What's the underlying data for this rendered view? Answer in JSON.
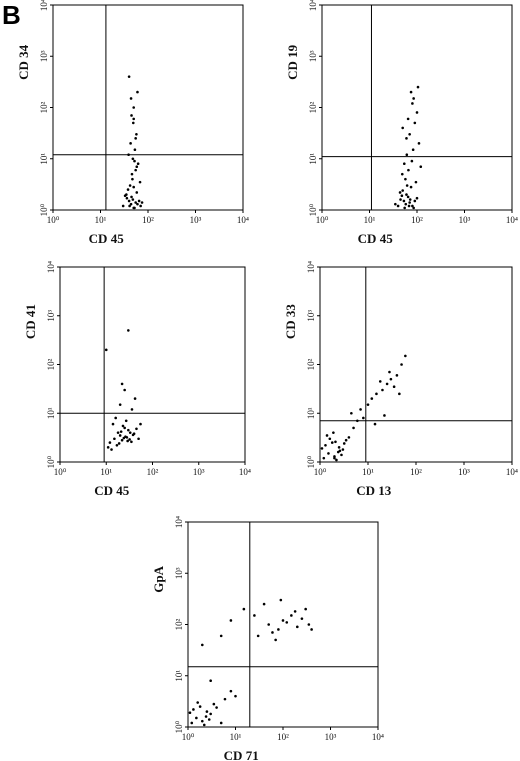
{
  "panel_label": "B",
  "chart_data": [
    {
      "type": "scatter",
      "xlabel": "CD 45",
      "ylabel": "CD 34",
      "log_scale": true,
      "color": "#000000",
      "xlim": [
        1,
        10000
      ],
      "ylim": [
        1,
        10000
      ],
      "xticks": [
        {
          "value": 1,
          "label": "10⁰"
        },
        {
          "value": 10,
          "label": "10¹"
        },
        {
          "value": 100,
          "label": "10²"
        },
        {
          "value": 1000,
          "label": "10³"
        },
        {
          "value": 10000,
          "label": "10⁴"
        }
      ],
      "yticks": [
        {
          "value": 1,
          "label": "10⁰"
        },
        {
          "value": 10,
          "label": "10¹"
        },
        {
          "value": 100,
          "label": "10²"
        },
        {
          "value": 1000,
          "label": "10³"
        },
        {
          "value": 10000,
          "label": "10⁴"
        }
      ],
      "gate": {
        "x": 13,
        "y": 12
      },
      "x": [
        30,
        40,
        50,
        35,
        60,
        45,
        55,
        38,
        70,
        42,
        48,
        52,
        33,
        65,
        58,
        44,
        36,
        75,
        50,
        41,
        47,
        55,
        62,
        39,
        53,
        46,
        68,
        43,
        57,
        49,
        50,
        45,
        60,
        40,
        55,
        48,
        52,
        58,
        44,
        50
      ],
      "y": [
        1.2,
        1.5,
        1.1,
        2,
        1.3,
        1.8,
        1.4,
        2.5,
        1.2,
        3,
        1.6,
        1.1,
        1.9,
        1.5,
        2.2,
        1.3,
        1.7,
        1.4,
        2.8,
        1.2,
        4,
        6,
        8,
        12,
        15,
        5,
        3.5,
        20,
        30,
        50,
        100,
        70,
        200,
        400,
        25,
        10,
        9,
        7,
        150,
        60
      ]
    },
    {
      "type": "scatter",
      "xlabel": "CD 45",
      "ylabel": "CD 19",
      "log_scale": true,
      "color": "#000000",
      "xlim": [
        1,
        10000
      ],
      "ylim": [
        1,
        10000
      ],
      "xticks": [
        {
          "value": 1,
          "label": "10⁰"
        },
        {
          "value": 10,
          "label": "10¹"
        },
        {
          "value": 100,
          "label": "10²"
        },
        {
          "value": 1000,
          "label": "10³"
        },
        {
          "value": 10000,
          "label": "10⁴"
        }
      ],
      "yticks": [
        {
          "value": 1,
          "label": "10⁰"
        },
        {
          "value": 10,
          "label": "10¹"
        },
        {
          "value": 100,
          "label": "10²"
        },
        {
          "value": 1000,
          "label": "10³"
        },
        {
          "value": 10000,
          "label": "10⁴"
        }
      ],
      "gate": {
        "x": 11,
        "y": 11
      },
      "x": [
        35,
        45,
        55,
        60,
        70,
        80,
        50,
        65,
        90,
        40,
        75,
        58,
        48,
        85,
        62,
        53,
        100,
        44,
        68,
        72,
        57,
        66,
        49,
        78,
        95,
        61,
        54,
        83,
        110,
        120,
        70,
        90,
        60,
        100,
        80,
        75,
        50,
        85,
        65,
        105
      ],
      "y": [
        1.3,
        1.6,
        1.1,
        2,
        1.4,
        1.2,
        2.4,
        1.8,
        1.5,
        1.2,
        2.8,
        1.3,
        1.9,
        1.1,
        3,
        1.5,
        1.7,
        2.2,
        1.2,
        1.6,
        4,
        6,
        5,
        9,
        3.5,
        12,
        8,
        15,
        20,
        7,
        30,
        50,
        25,
        80,
        120,
        200,
        40,
        150,
        60,
        250
      ]
    },
    {
      "type": "scatter",
      "xlabel": "CD 45",
      "ylabel": "CD 41",
      "log_scale": true,
      "color": "#000000",
      "xlim": [
        1,
        10000
      ],
      "ylim": [
        1,
        10000
      ],
      "xticks": [
        {
          "value": 1,
          "label": "10⁰"
        },
        {
          "value": 10,
          "label": "10¹"
        },
        {
          "value": 100,
          "label": "10²"
        },
        {
          "value": 1000,
          "label": "10³"
        },
        {
          "value": 10000,
          "label": "10⁴"
        }
      ],
      "yticks": [
        {
          "value": 1,
          "label": "10⁰"
        },
        {
          "value": 10,
          "label": "10¹"
        },
        {
          "value": 100,
          "label": "10²"
        },
        {
          "value": 1000,
          "label": "10³"
        },
        {
          "value": 10000,
          "label": "10⁴"
        }
      ],
      "gate": {
        "x": 9,
        "y": 10
      },
      "x": [
        12,
        15,
        18,
        20,
        22,
        25,
        28,
        30,
        35,
        40,
        14,
        17,
        21,
        24,
        27,
        32,
        38,
        45,
        50,
        19,
        23,
        26,
        29,
        16,
        33,
        11,
        13,
        36,
        42,
        55,
        30,
        10,
        25,
        22,
        20
      ],
      "y": [
        2.5,
        3,
        4,
        3.5,
        2.8,
        5,
        3.2,
        4.5,
        2.6,
        3.8,
        6,
        2.2,
        4.2,
        3.1,
        7,
        2.9,
        3.6,
        4.8,
        3,
        2.4,
        5.5,
        3.3,
        2.7,
        8,
        4,
        2,
        1.8,
        12,
        20,
        6,
        500,
        200,
        30,
        40,
        15
      ]
    },
    {
      "type": "scatter",
      "xlabel": "CD 13",
      "ylabel": "CD 33",
      "log_scale": true,
      "color": "#000000",
      "xlim": [
        1,
        10000
      ],
      "ylim": [
        1,
        10000
      ],
      "xticks": [
        {
          "value": 1,
          "label": "10⁰"
        },
        {
          "value": 10,
          "label": "10¹"
        },
        {
          "value": 100,
          "label": "10²"
        },
        {
          "value": 1000,
          "label": "10³"
        },
        {
          "value": 10000,
          "label": "10⁴"
        }
      ],
      "yticks": [
        {
          "value": 1,
          "label": "10⁰"
        },
        {
          "value": 10,
          "label": "10¹"
        },
        {
          "value": 100,
          "label": "10²"
        },
        {
          "value": 1000,
          "label": "10³"
        },
        {
          "value": 10000,
          "label": "10⁴"
        }
      ],
      "gate": {
        "x": 9,
        "y": 7
      },
      "x": [
        1.2,
        1.5,
        2,
        2.5,
        3,
        1.8,
        2.2,
        1.3,
        2.8,
        3.5,
        1.6,
        2.4,
        1.1,
        3.2,
        2,
        1.4,
        2.6,
        4,
        1.9,
        2.1,
        5,
        6,
        8,
        4.5,
        7,
        10,
        12,
        15,
        20,
        25,
        30,
        18,
        40,
        50,
        35,
        22,
        60,
        14,
        28,
        45
      ],
      "y": [
        1.2,
        1.5,
        1.3,
        2,
        1.8,
        2.5,
        1.1,
        2.2,
        1.4,
        2.8,
        3,
        1.6,
        1.9,
        2.4,
        1.2,
        3.5,
        1.7,
        3.2,
        4,
        2.6,
        5,
        7,
        8,
        10,
        12,
        15,
        20,
        25,
        30,
        40,
        50,
        45,
        60,
        100,
        35,
        9,
        150,
        6,
        70,
        25
      ]
    },
    {
      "type": "scatter",
      "xlabel": "CD 71",
      "ylabel": "GpA",
      "log_scale": true,
      "color": "#000000",
      "xlim": [
        1,
        10000
      ],
      "ylim": [
        1,
        10000
      ],
      "xticks": [
        {
          "value": 1,
          "label": "10⁰"
        },
        {
          "value": 10,
          "label": "10¹"
        },
        {
          "value": 100,
          "label": "10²"
        },
        {
          "value": 1000,
          "label": "10³"
        },
        {
          "value": 10000,
          "label": "10⁴"
        }
      ],
      "yticks": [
        {
          "value": 1,
          "label": "10⁰"
        },
        {
          "value": 10,
          "label": "10¹"
        },
        {
          "value": 100,
          "label": "10²"
        },
        {
          "value": 1000,
          "label": "10³"
        },
        {
          "value": 10000,
          "label": "10⁴"
        }
      ],
      "gate": {
        "x": 20,
        "y": 15
      },
      "x": [
        1.2,
        1.5,
        2,
        2.5,
        3,
        1.8,
        2.2,
        1.3,
        2.8,
        3.5,
        1.6,
        2.4,
        1.1,
        4,
        5,
        6,
        8,
        3,
        10,
        2,
        30,
        50,
        80,
        100,
        150,
        200,
        300,
        60,
        120,
        250,
        40,
        70,
        180,
        90,
        350,
        25,
        15,
        5,
        8,
        400
      ],
      "y": [
        1.2,
        1.5,
        1.3,
        2,
        1.8,
        2.5,
        1.1,
        2.2,
        1.4,
        2.8,
        3,
        1.6,
        1.9,
        2.4,
        1.2,
        3.5,
        5,
        8,
        4,
        40,
        60,
        100,
        80,
        120,
        150,
        90,
        200,
        70,
        110,
        130,
        250,
        50,
        180,
        300,
        100,
        150,
        200,
        60,
        120,
        80
      ]
    }
  ]
}
